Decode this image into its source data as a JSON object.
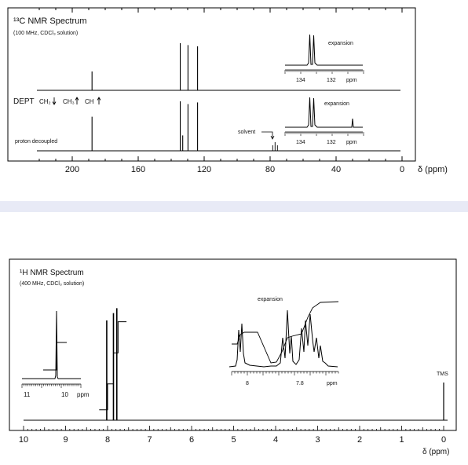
{
  "chart_data": [
    {
      "type": "line",
      "title": "¹³C NMR Spectrum",
      "subtitle": "(100 MHz, CDCl₃ solution)",
      "xlabel": "δ (ppm)",
      "xlim": [
        220,
        0
      ],
      "x_ticks": [
        200,
        160,
        120,
        80,
        40,
        0
      ],
      "dept_label": "DEPT",
      "dept_legend": [
        "CH₂",
        "CH₃",
        "CH"
      ],
      "lower_trace_label": "proton decoupled",
      "solvent_label": "solvent",
      "solvent_ppm": 77,
      "dept_peaks": [
        {
          "ppm": 188.0,
          "height": 0.3
        },
        {
          "ppm": 134.5,
          "height": 0.75
        },
        {
          "ppm": 129.8,
          "height": 0.72
        },
        {
          "ppm": 124.0,
          "height": 0.7
        }
      ],
      "decoupled_peaks": [
        {
          "ppm": 188.0,
          "height": 0.62
        },
        {
          "ppm": 134.5,
          "height": 0.9
        },
        {
          "ppm": 133.0,
          "height": 0.28
        },
        {
          "ppm": 129.8,
          "height": 0.85
        },
        {
          "ppm": 124.0,
          "height": 0.88
        },
        {
          "ppm": 77.0,
          "height": 0.1
        }
      ],
      "insets": [
        {
          "label": "expansion",
          "x_ticks": [
            134,
            132
          ],
          "unit": "ppm"
        },
        {
          "label": "expansion",
          "x_ticks": [
            134,
            132
          ],
          "unit": "ppm"
        }
      ]
    },
    {
      "type": "line",
      "title": "¹H NMR Spectrum",
      "subtitle": "(400 MHz, CDCl₃ solution)",
      "xlabel": "δ (ppm)",
      "xlim": [
        10,
        0
      ],
      "x_ticks": [
        10,
        9,
        8,
        7,
        6,
        5,
        4,
        3,
        2,
        1,
        0
      ],
      "reference_label": "TMS",
      "reference_ppm": 0,
      "peaks": [
        {
          "ppm": 8.02,
          "height": 0.82
        },
        {
          "ppm": 7.86,
          "height": 0.88
        },
        {
          "ppm": 7.78,
          "height": 0.92
        }
      ],
      "integration_steps": [
        0.1,
        0.35,
        0.65,
        0.95
      ],
      "inset_aldehyde": {
        "x_ticks": [
          11,
          10
        ],
        "unit": "ppm",
        "peak_ppm": 10.4
      },
      "inset_expansion": {
        "label": "expansion",
        "x_ticks": [
          8.0,
          7.8
        ],
        "unit": "ppm"
      }
    }
  ]
}
